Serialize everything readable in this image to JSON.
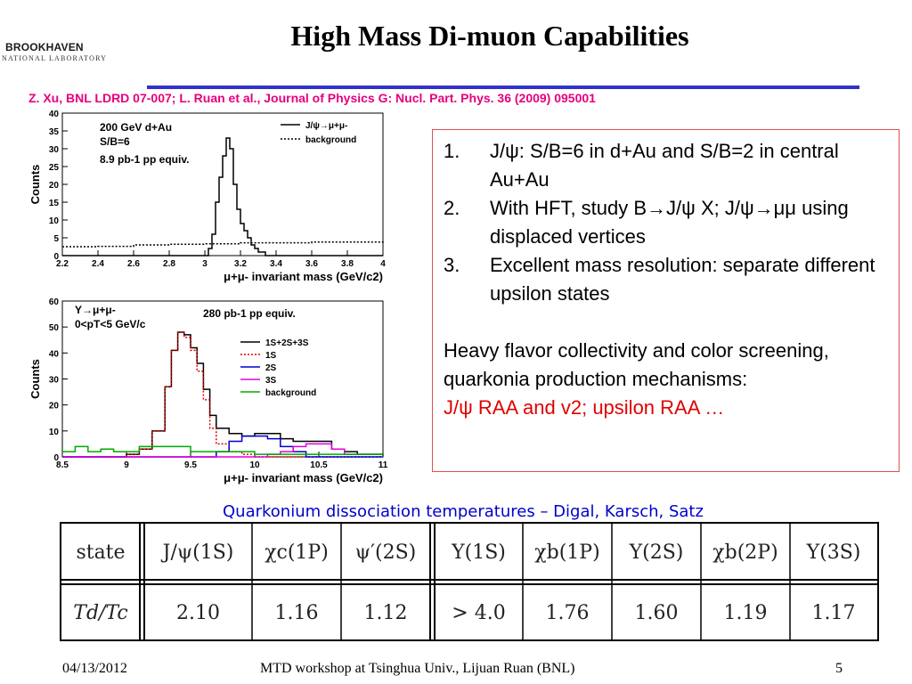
{
  "logo": {
    "line1": "BROOKHAVEN",
    "line2": "NATIONAL LABORATORY"
  },
  "title": "High Mass Di-muon Capabilities",
  "citation": "Z. Xu, BNL LDRD 07-007; L. Ruan et al., Journal of Physics G: Nucl. Part. Phys. 36 (2009) 095001",
  "bullets": [
    {
      "num": "1.",
      "text": "J/ψ: S/B=6 in d+Au  and S/B=2 in central Au+Au"
    },
    {
      "num": "2.",
      "text": "With HFT, study B→J/ψ X; J/ψ→μμ using displaced vertices"
    },
    {
      "num": "3.",
      "text": "Excellent mass resolution: separate different upsilon states"
    }
  ],
  "paragraph": "Heavy flavor collectivity and color screening, quarkonia production mechanisms:",
  "red_line": "J/ψ RAA and v2; upsilon RAA  …",
  "table_title": "Quarkonium dissociation temperatures – Digal, Karsch, Satz",
  "table": {
    "row_header_1": "state",
    "row_header_2": "Td/Tc",
    "states": [
      "J/ψ(1S)",
      "χc(1P)",
      "ψ′(2S)",
      "Υ(1S)",
      "χb(1P)",
      "Υ(2S)",
      "χb(2P)",
      "Υ(3S)"
    ],
    "values": [
      "2.10",
      "1.16",
      "1.12",
      "> 4.0",
      "1.76",
      "1.60",
      "1.19",
      "1.17"
    ]
  },
  "footer": {
    "date": "04/13/2012",
    "center": "MTD workshop at Tsinghua Univ., Lijuan Ruan (BNL)",
    "page": "5"
  },
  "chart_data": [
    {
      "type": "line",
      "ylabel": "Counts",
      "xlabel": "μ+μ- invariant mass (GeV/c2)",
      "xlim": [
        2.2,
        4.0
      ],
      "ylim": [
        0,
        40
      ],
      "xticks": [
        "2.2",
        "2.4",
        "2.6",
        "2.8",
        "3",
        "3.2",
        "3.4",
        "3.6",
        "3.8",
        "4"
      ],
      "yticks": [
        "0",
        "5",
        "10",
        "15",
        "20",
        "25",
        "30",
        "35",
        "40"
      ],
      "annotations": [
        "200 GeV d+Au",
        "S/B=6",
        "8.9 pb-1 pp equiv."
      ],
      "legend": [
        "J/ψ→μ+μ-",
        "background"
      ],
      "legend_position": "top-right",
      "series": [
        {
          "name": "J/ψ→μ+μ-",
          "style": "solid",
          "color": "#000000",
          "x": [
            2.2,
            2.85,
            3.0,
            3.02,
            3.04,
            3.06,
            3.08,
            3.1,
            3.12,
            3.14,
            3.16,
            3.18,
            3.2,
            3.22,
            3.24,
            3.26,
            3.28,
            3.3,
            3.34,
            4.0
          ],
          "y": [
            0,
            0,
            0,
            2,
            6,
            15,
            22,
            28,
            33,
            30,
            20,
            13,
            9,
            7,
            5,
            3,
            2,
            1,
            0,
            0
          ]
        },
        {
          "name": "background",
          "style": "dotted",
          "color": "#000000",
          "x": [
            2.2,
            2.4,
            2.6,
            2.8,
            3.0,
            3.2,
            3.4,
            3.6,
            3.8,
            4.0
          ],
          "y": [
            2.5,
            2.6,
            3.0,
            3.2,
            3.3,
            3.6,
            3.6,
            3.8,
            3.8,
            4.0
          ]
        }
      ]
    },
    {
      "type": "line",
      "ylabel": "Counts",
      "xlabel": "μ+μ- invariant mass (GeV/c2)",
      "xlim": [
        8.5,
        11
      ],
      "ylim": [
        0,
        60
      ],
      "xticks": [
        "8.5",
        "9",
        "9.5",
        "10",
        "10.5",
        "11"
      ],
      "yticks": [
        "0",
        "10",
        "20",
        "30",
        "40",
        "50",
        "60"
      ],
      "annotations": [
        "Υ→μ+μ-",
        "0<pT<5 GeV/c",
        "280 pb-1 pp equiv."
      ],
      "legend": [
        "1S+2S+3S",
        "1S",
        "2S",
        "3S",
        "background"
      ],
      "legend_position": "right",
      "series": [
        {
          "name": "1S+2S+3S",
          "style": "solid",
          "color": "#000000",
          "x": [
            8.5,
            8.8,
            9.0,
            9.1,
            9.2,
            9.3,
            9.35,
            9.4,
            9.45,
            9.5,
            9.55,
            9.6,
            9.65,
            9.7,
            9.8,
            9.9,
            10.0,
            10.1,
            10.2,
            10.3,
            10.4,
            10.5,
            10.6,
            10.7,
            10.8,
            11.0
          ],
          "y": [
            0,
            0,
            1,
            3,
            10,
            27,
            41,
            48,
            47,
            42,
            36,
            26,
            16,
            11,
            9,
            8,
            9,
            9,
            7,
            6,
            6,
            6,
            3,
            2,
            1,
            0
          ]
        },
        {
          "name": "1S",
          "style": "dotted",
          "color": "#e00000",
          "x": [
            8.5,
            8.8,
            9.0,
            9.1,
            9.2,
            9.3,
            9.35,
            9.4,
            9.45,
            9.5,
            9.55,
            9.6,
            9.65,
            9.7,
            9.8,
            9.9,
            10.0,
            10.5,
            11.0
          ],
          "y": [
            0,
            0,
            1,
            3,
            10,
            27,
            41,
            48,
            46,
            41,
            33,
            22,
            11,
            5,
            2,
            1,
            0,
            0,
            0
          ]
        },
        {
          "name": "2S",
          "style": "solid",
          "color": "#0000cc",
          "x": [
            8.5,
            9.6,
            9.7,
            9.8,
            9.9,
            10.0,
            10.1,
            10.2,
            10.3,
            10.4,
            11.0
          ],
          "y": [
            0,
            0,
            2,
            6,
            8,
            8,
            7,
            4,
            2,
            0,
            0
          ]
        },
        {
          "name": "3S",
          "style": "solid",
          "color": "#e000e0",
          "x": [
            8.5,
            10.0,
            10.1,
            10.2,
            10.3,
            10.4,
            10.5,
            10.6,
            10.7,
            11.0
          ],
          "y": [
            0,
            0,
            1,
            2,
            4,
            5,
            5,
            3,
            1,
            0
          ]
        },
        {
          "name": "background",
          "style": "solid",
          "color": "#00aa00",
          "x": [
            8.5,
            8.6,
            8.7,
            8.8,
            8.9,
            9.0,
            9.1,
            9.5,
            10.0,
            11.0
          ],
          "y": [
            2,
            4,
            2,
            3,
            2,
            2,
            4,
            2,
            1,
            0
          ]
        }
      ]
    }
  ]
}
